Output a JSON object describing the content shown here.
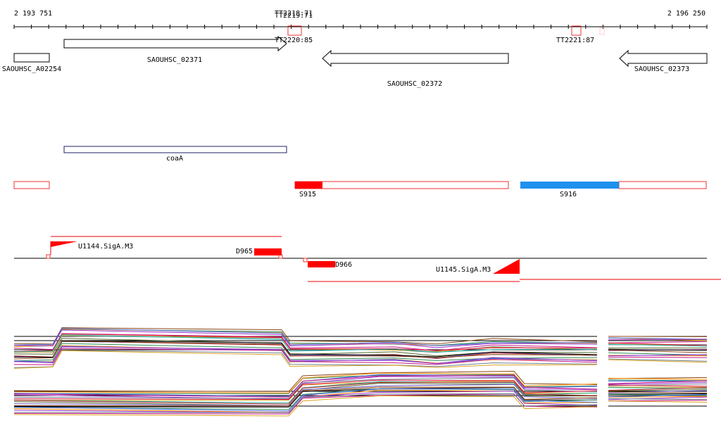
{
  "ruler": {
    "start": "2 193 751",
    "end": "2 196 250"
  },
  "terminators": [
    "TT2218:71",
    "TT2219:71",
    "TT2220:85",
    "TT2221:87"
  ],
  "genes": [
    "SAOUHSC_A02254",
    "SAOUHSC_02371",
    "SAOUHSC_02372",
    "SAOUHSC_02373"
  ],
  "operon": "coaA",
  "segments": [
    "S915",
    "S916"
  ],
  "features": [
    "U1144.SigA.M3",
    "D965",
    "D966",
    "U1145.SigA.M3"
  ]
}
